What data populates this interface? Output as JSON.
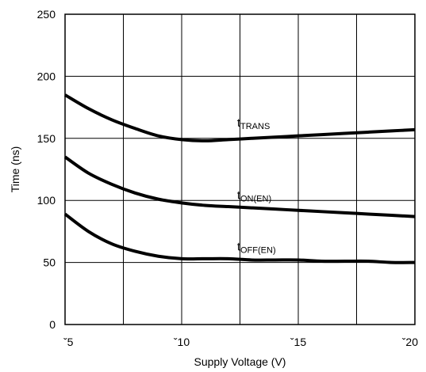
{
  "chart_data": {
    "type": "line",
    "title": "",
    "xlabel": "Supply Voltage (V)",
    "ylabel": "Time (ns)",
    "xlim": [
      -5,
      -20
    ],
    "ylim": [
      0,
      250
    ],
    "x_ticks": [
      "ˇ5",
      "ˇ10",
      "ˇ15",
      "ˇ20"
    ],
    "y_ticks": [
      "0",
      "50",
      "100",
      "150",
      "200",
      "250"
    ],
    "grid": true,
    "legend": "none",
    "series": [
      {
        "name": "tTRANS",
        "label_main": "t",
        "label_sub": "TRANS",
        "x": [
          -5,
          -6,
          -7,
          -8,
          -9,
          -10,
          -11,
          -12,
          -13,
          -14,
          -15,
          -16,
          -17,
          -18,
          -19,
          -20
        ],
        "y": [
          185,
          174,
          165,
          158,
          152,
          149,
          148,
          149,
          150,
          151,
          152,
          153,
          154,
          155,
          156,
          157
        ]
      },
      {
        "name": "tON(EN)",
        "label_main": "t",
        "label_sub": "ON(EN)",
        "x": [
          -5,
          -6,
          -7,
          -8,
          -9,
          -10,
          -11,
          -12,
          -13,
          -14,
          -15,
          -16,
          -17,
          -18,
          -19,
          -20
        ],
        "y": [
          135,
          122,
          113,
          106,
          101,
          98,
          96,
          95,
          94,
          93,
          92,
          91,
          90,
          89,
          88,
          87
        ]
      },
      {
        "name": "tOFF(EN)",
        "label_main": "t",
        "label_sub": "OFF(EN)",
        "x": [
          -5,
          -6,
          -7,
          -8,
          -9,
          -10,
          -11,
          -12,
          -13,
          -14,
          -15,
          -16,
          -17,
          -18,
          -19,
          -20
        ],
        "y": [
          89,
          75,
          65,
          59,
          55,
          53,
          53,
          53,
          52,
          52,
          52,
          51,
          51,
          51,
          50,
          50
        ]
      }
    ]
  }
}
